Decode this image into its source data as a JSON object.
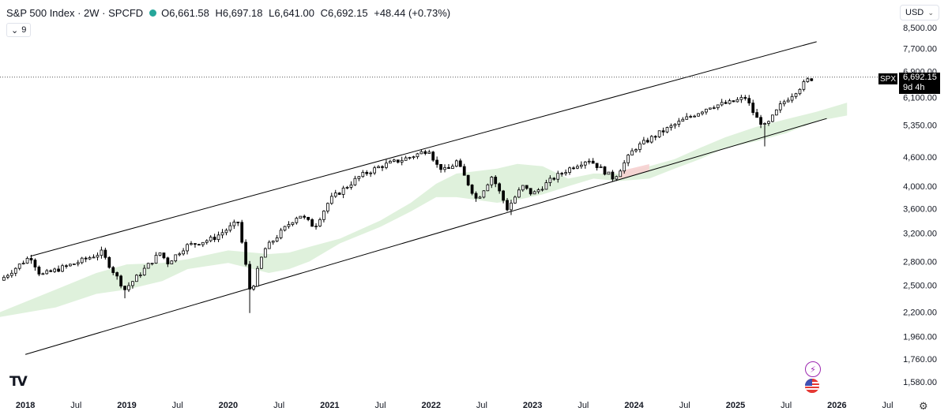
{
  "header": {
    "title": "S&P 500 Index · 2W · SPCFD",
    "open": "O6,661.58",
    "high": "H6,697.18",
    "low": "L6,641.00",
    "close": "C6,692.15",
    "change": "+48.44 (+0.73%)",
    "status_color": "#26a69a"
  },
  "indicator_toggle": {
    "count": "9"
  },
  "currency": {
    "label": "USD"
  },
  "last_price": {
    "symbol": "SPX",
    "value": "6,692.15",
    "countdown": "9d 4h"
  },
  "icons": [
    "tradingview-logo-icon",
    "lightning-icon",
    "us-flag-icon",
    "gear-icon",
    "chevron-down-icon"
  ],
  "colors": {
    "up_candle": "#ffffff",
    "down_candle": "#000000",
    "cloud_bull": "#d9efd6",
    "cloud_bear": "#f6d0d0",
    "channel": "#000000"
  },
  "chart_data": {
    "type": "candlestick",
    "price_axis_ticks": [
      8500,
      7700,
      6900,
      6100,
      5350,
      4600,
      4000,
      3600,
      3200,
      2800,
      2500,
      2200,
      1960,
      1760,
      1580
    ],
    "price_axis_labels": [
      "8,500.00",
      "7,700.00",
      "6,900.00",
      "6,100.00",
      "5,350.00",
      "4,600.00",
      "4,000.00",
      "3,600.00",
      "3,200.00",
      "2,800.00",
      "2,500.00",
      "2,200.00",
      "1,960.00",
      "1,760.00",
      "1,580.00"
    ],
    "time_axis_labels": [
      "2018",
      "Jul",
      "2019",
      "Jul",
      "2020",
      "Jul",
      "2021",
      "Jul",
      "2022",
      "Jul",
      "2023",
      "Jul",
      "2024",
      "Jul",
      "2025",
      "Jul",
      "2026",
      "Jul"
    ],
    "time_axis_bold": [
      true,
      false,
      true,
      false,
      true,
      false,
      true,
      false,
      true,
      false,
      true,
      false,
      true,
      false,
      true,
      false,
      true,
      false
    ],
    "time_axis_x": [
      2018.0,
      2018.5,
      2019.0,
      2019.5,
      2020.0,
      2020.5,
      2021.0,
      2021.5,
      2022.0,
      2022.5,
      2023.0,
      2023.5,
      2024.0,
      2024.5,
      2025.0,
      2025.5,
      2026.0,
      2026.5
    ],
    "log_scale": true,
    "x_range": [
      2017.75,
      2026.55
    ],
    "y_range": [
      1480,
      9300
    ],
    "last_close": 6692.15,
    "anchors": [
      [
        2017.75,
        2560
      ],
      [
        2018.05,
        2870
      ],
      [
        2018.15,
        2620
      ],
      [
        2018.5,
        2780
      ],
      [
        2018.75,
        2920
      ],
      [
        2018.98,
        2450
      ],
      [
        2019.33,
        2920
      ],
      [
        2019.4,
        2780
      ],
      [
        2019.58,
        3010
      ],
      [
        2019.85,
        3120
      ],
      [
        2020.1,
        3380
      ],
      [
        2020.22,
        2400
      ],
      [
        2020.35,
        2950
      ],
      [
        2020.6,
        3350
      ],
      [
        2020.7,
        3500
      ],
      [
        2020.85,
        3300
      ],
      [
        2021.0,
        3750
      ],
      [
        2021.3,
        4200
      ],
      [
        2021.5,
        4400
      ],
      [
        2021.65,
        4500
      ],
      [
        2021.8,
        4600
      ],
      [
        2021.98,
        4770
      ],
      [
        2022.05,
        4430
      ],
      [
        2022.15,
        4300
      ],
      [
        2022.25,
        4500
      ],
      [
        2022.45,
        3750
      ],
      [
        2022.6,
        4200
      ],
      [
        2022.75,
        3600
      ],
      [
        2022.9,
        4000
      ],
      [
        2023.0,
        3850
      ],
      [
        2023.2,
        4150
      ],
      [
        2023.4,
        4400
      ],
      [
        2023.55,
        4550
      ],
      [
        2023.8,
        4150
      ],
      [
        2024.0,
        4780
      ],
      [
        2024.25,
        5150
      ],
      [
        2024.5,
        5500
      ],
      [
        2024.75,
        5850
      ],
      [
        2024.95,
        5950
      ],
      [
        2025.1,
        6100
      ],
      [
        2025.2,
        5550
      ],
      [
        2025.3,
        5300
      ],
      [
        2025.45,
        5900
      ],
      [
        2025.6,
        6300
      ],
      [
        2025.72,
        6650
      ],
      [
        2025.78,
        6692.15
      ]
    ],
    "crash_lows": [
      [
        2020.22,
        2191
      ],
      [
        2025.3,
        4835
      ],
      [
        2018.98,
        2350
      ],
      [
        2022.78,
        3490
      ]
    ],
    "channel_upper": [
      [
        2018.05,
        2870
      ],
      [
        2025.8,
        7950
      ]
    ],
    "channel_lower": [
      [
        2018.0,
        1800
      ],
      [
        2025.9,
        5520
      ]
    ],
    "cloud": [
      [
        2017.75,
        2150,
        2200
      ],
      [
        2018.3,
        2250,
        2450
      ],
      [
        2018.7,
        2400,
        2650
      ],
      [
        2019.0,
        2450,
        2760
      ],
      [
        2019.35,
        2550,
        2780
      ],
      [
        2019.6,
        2700,
        2830
      ],
      [
        2020.0,
        2780,
        2950
      ],
      [
        2020.4,
        2650,
        2900
      ],
      [
        2020.6,
        2700,
        2920
      ],
      [
        2020.8,
        2800,
        3000
      ],
      [
        2021.1,
        3050,
        3120
      ],
      [
        2021.5,
        3300,
        3400
      ],
      [
        2021.8,
        3550,
        3700
      ],
      [
        2022.05,
        3800,
        4050
      ],
      [
        2022.25,
        3800,
        4250
      ],
      [
        2022.45,
        3750,
        4300
      ],
      [
        2022.65,
        3700,
        4350
      ],
      [
        2022.85,
        3750,
        4450
      ],
      [
        2023.1,
        3850,
        4400
      ],
      [
        2023.35,
        4000,
        4150
      ],
      [
        2023.6,
        4150,
        4250
      ],
      [
        2023.85,
        4100,
        4250
      ],
      [
        2024.15,
        4150,
        4400
      ],
      [
        2024.4,
        4350,
        4550
      ],
      [
        2024.65,
        4550,
        4800
      ],
      [
        2024.9,
        4800,
        5050
      ],
      [
        2025.2,
        4950,
        5300
      ],
      [
        2025.5,
        5150,
        5500
      ],
      [
        2025.8,
        5450,
        5700
      ],
      [
        2026.1,
        5600,
        5950
      ]
    ],
    "cloud_bear_ranges": [
      [
        2023.75,
        2024.35
      ]
    ]
  }
}
